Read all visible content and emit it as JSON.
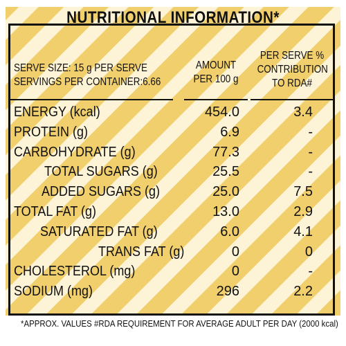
{
  "title": "NUTRITIONAL INFORMATION*",
  "serve_size": "SERVE SIZE: 15 g PER SERVE",
  "servings": "SERVINGS PER CONTAINER:6.66",
  "col_amount_l1": "AMOUNT",
  "col_amount_l2": "PER 100 g",
  "col_rda_l1": "PER SERVE %",
  "col_rda_l2": "CONTRIBUTION",
  "col_rda_l3": "TO RDA#",
  "rows": [
    {
      "name": "ENERGY (kcal)",
      "amount": "454.0",
      "rda": "3.4"
    },
    {
      "name": "PROTEIN (g)",
      "amount": "6.9",
      "rda": "-"
    },
    {
      "name": "CARBOHYDRATE (g)",
      "amount": "77.3",
      "rda": "-"
    },
    {
      "name": "TOTAL SUGARS (g)",
      "amount": "25.5",
      "rda": "-"
    },
    {
      "name": "ADDED SUGARS (g)",
      "amount": "25.0",
      "rda": "7.5"
    },
    {
      "name": "TOTAL FAT (g)",
      "amount": "13.0",
      "rda": "2.9"
    },
    {
      "name": "SATURATED FAT (g)",
      "amount": "6.0",
      "rda": "4.1"
    },
    {
      "name": "TRANS FAT (g)",
      "amount": "0",
      "rda": "0"
    },
    {
      "name": "CHOLESTEROL (mg)",
      "amount": "0",
      "rda": "-"
    },
    {
      "name": "SODIUM (mg)",
      "amount": "296",
      "rda": "2.2"
    }
  ],
  "footer": "*APPROX. VALUES  #RDA REQUIREMENT FOR AVERAGE ADULT PER DAY (2000 kcal)"
}
